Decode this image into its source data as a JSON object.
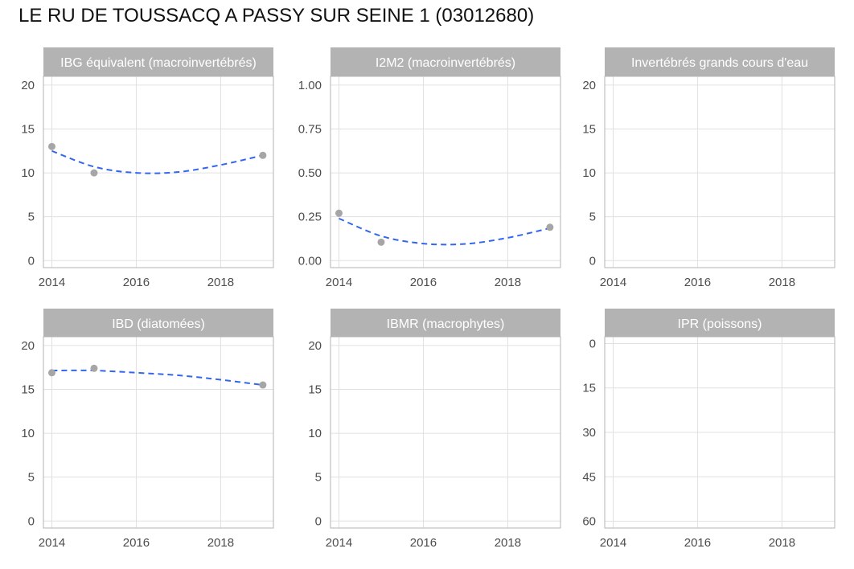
{
  "page": {
    "title": "LE RU DE TOUSSACQ A PASSY SUR SEINE 1 (03012680)"
  },
  "colors": {
    "strip_bg": "#b3b3b3",
    "strip_text": "#ffffff",
    "grid": "#e0e0e0",
    "panel_border": "#b3b3b3",
    "point": "#a6a6a6",
    "trend": "#3366ee",
    "tick_label": "#4d4d4d"
  },
  "chart_data": [
    {
      "type": "scatter",
      "title": "IBG équivalent (macroinvertébrés)",
      "xlim": [
        2013.8,
        2019.25
      ],
      "ylim": [
        -0.8,
        21
      ],
      "xticks": [
        2014,
        2016,
        2018
      ],
      "xtick_labels": [
        "2014",
        "2016",
        "2018"
      ],
      "yticks": [
        0,
        5,
        10,
        15,
        20
      ],
      "ytick_labels": [
        "0",
        "5",
        "10",
        "15",
        "20"
      ],
      "reverse_y": false,
      "points": [
        {
          "x": 2014,
          "y": 13
        },
        {
          "x": 2015,
          "y": 10
        },
        {
          "x": 2019,
          "y": 12
        }
      ],
      "trend": {
        "style": "dashed",
        "x": [
          2014,
          2015,
          2016,
          2017,
          2018,
          2019
        ],
        "y": [
          12.5,
          10.7,
          10.0,
          10.1,
          10.9,
          12.0
        ]
      }
    },
    {
      "type": "scatter",
      "title": "I2M2 (macroinvertébrés)",
      "xlim": [
        2013.8,
        2019.25
      ],
      "ylim": [
        -0.04,
        1.05
      ],
      "xticks": [
        2014,
        2016,
        2018
      ],
      "xtick_labels": [
        "2014",
        "2016",
        "2018"
      ],
      "yticks": [
        0,
        0.25,
        0.5,
        0.75,
        1
      ],
      "ytick_labels": [
        "0.00",
        "0.25",
        "0.50",
        "0.75",
        "1.00"
      ],
      "reverse_y": false,
      "points": [
        {
          "x": 2014,
          "y": 0.27
        },
        {
          "x": 2015,
          "y": 0.105
        },
        {
          "x": 2019,
          "y": 0.19
        }
      ],
      "trend": {
        "style": "dashed",
        "x": [
          2014,
          2015,
          2016,
          2017,
          2018,
          2019
        ],
        "y": [
          0.24,
          0.14,
          0.097,
          0.095,
          0.13,
          0.185
        ]
      }
    },
    {
      "type": "scatter",
      "title": "Invertébrés grands cours d'eau",
      "xlim": [
        2013.8,
        2019.25
      ],
      "ylim": [
        -0.8,
        21
      ],
      "xticks": [
        2014,
        2016,
        2018
      ],
      "xtick_labels": [
        "2014",
        "2016",
        "2018"
      ],
      "yticks": [
        0,
        5,
        10,
        15,
        20
      ],
      "ytick_labels": [
        "0",
        "5",
        "10",
        "15",
        "20"
      ],
      "reverse_y": false,
      "points": [],
      "trend": null
    },
    {
      "type": "scatter",
      "title": "IBD (diatomées)",
      "xlim": [
        2013.8,
        2019.25
      ],
      "ylim": [
        -0.8,
        21
      ],
      "xticks": [
        2014,
        2016,
        2018
      ],
      "xtick_labels": [
        "2014",
        "2016",
        "2018"
      ],
      "yticks": [
        0,
        5,
        10,
        15,
        20
      ],
      "ytick_labels": [
        "0",
        "5",
        "10",
        "15",
        "20"
      ],
      "reverse_y": false,
      "points": [
        {
          "x": 2014,
          "y": 16.9
        },
        {
          "x": 2015,
          "y": 17.4
        },
        {
          "x": 2019,
          "y": 15.5
        }
      ],
      "trend": {
        "style": "dashed",
        "x": [
          2014,
          2015,
          2016,
          2017,
          2018,
          2019
        ],
        "y": [
          17.15,
          17.15,
          16.9,
          16.6,
          16.1,
          15.5
        ]
      }
    },
    {
      "type": "scatter",
      "title": "IBMR (macrophytes)",
      "xlim": [
        2013.8,
        2019.25
      ],
      "ylim": [
        -0.8,
        21
      ],
      "xticks": [
        2014,
        2016,
        2018
      ],
      "xtick_labels": [
        "2014",
        "2016",
        "2018"
      ],
      "yticks": [
        0,
        5,
        10,
        15,
        20
      ],
      "ytick_labels": [
        "0",
        "5",
        "10",
        "15",
        "20"
      ],
      "reverse_y": false,
      "points": [],
      "trend": null
    },
    {
      "type": "scatter",
      "title": "IPR (poissons)",
      "xlim": [
        2013.8,
        2019.25
      ],
      "ylim": [
        -2.3,
        62.3
      ],
      "xticks": [
        2014,
        2016,
        2018
      ],
      "xtick_labels": [
        "2014",
        "2016",
        "2018"
      ],
      "yticks": [
        0,
        15,
        30,
        45,
        60
      ],
      "ytick_labels": [
        "0",
        "15",
        "30",
        "45",
        "60"
      ],
      "reverse_y": true,
      "points": [],
      "trend": null
    }
  ]
}
